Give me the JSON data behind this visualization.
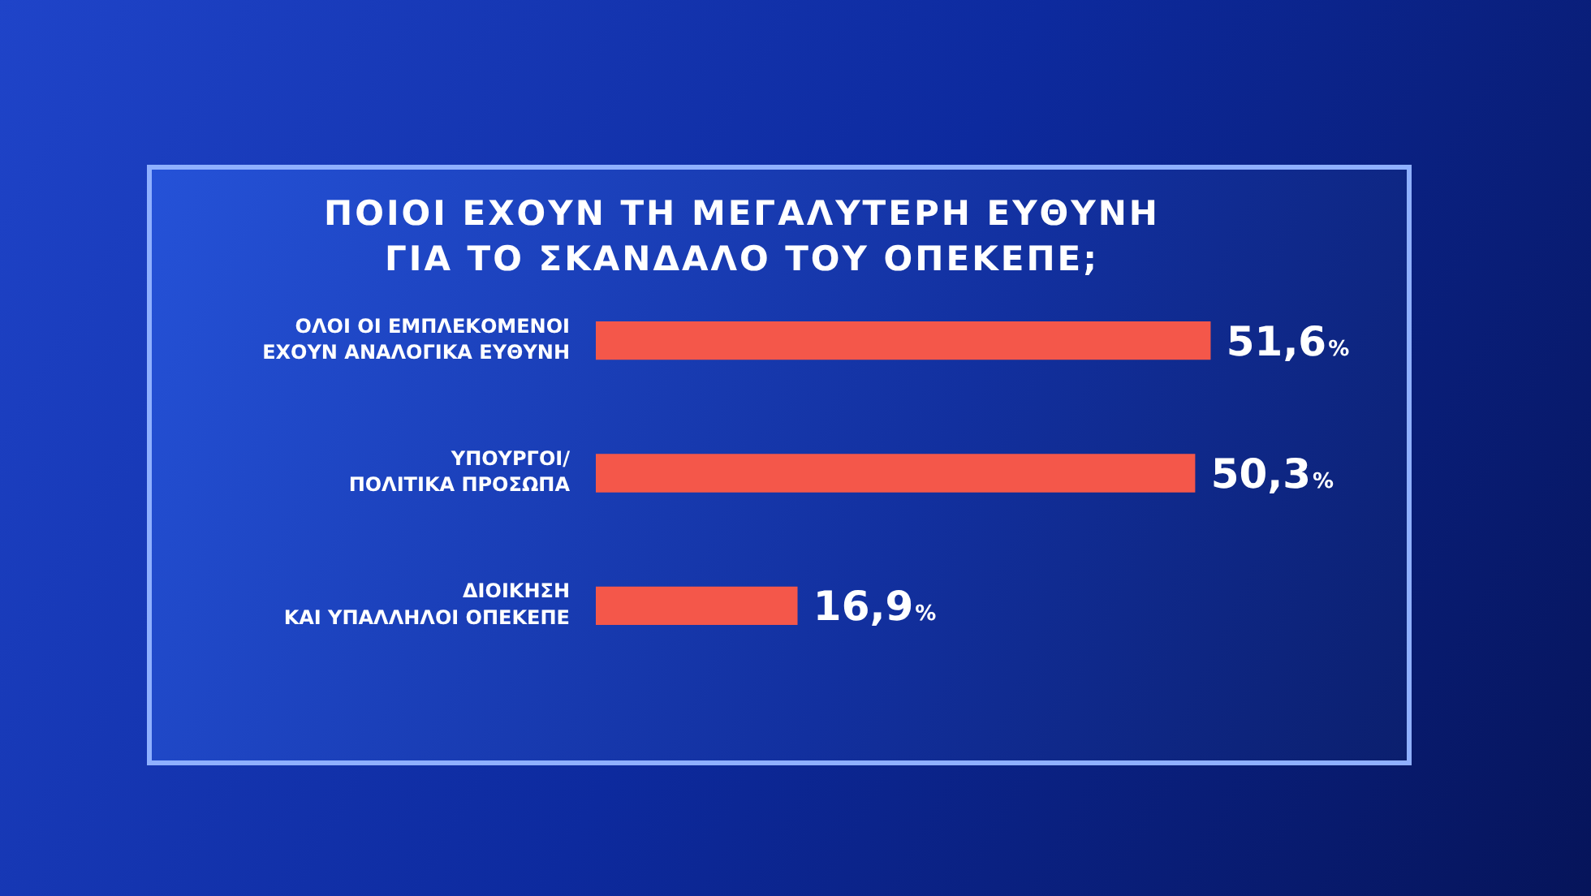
{
  "chart_data": {
    "type": "bar",
    "orientation": "horizontal",
    "title": "ΠΟΙΟΙ ΕΧΟΥΝ ΤΗ ΜΕΓΑΛΥΤΕΡΗ ΕΥΘΥΝΗ\nΓΙΑ ΤΟ ΣΚΑΝΔΑΛΟ ΤΟΥ ΟΠΕΚΕΠΕ;",
    "categories": [
      "ΟΛΟΙ ΟΙ ΕΜΠΛΕΚΟΜΕΝΟΙ\nΕΧΟΥΝ ΑΝΑΛΟΓΙΚΑ ΕΥΘΥΝΗ",
      "ΥΠΟΥΡΓΟΙ/\nΠΟΛΙΤΙΚΑ ΠΡΟΣΩΠΑ",
      "ΔΙΟΙΚΗΣΗ\nΚΑΙ ΥΠΑΛΛΗΛΟΙ ΟΠΕΚΕΠΕ"
    ],
    "values": [
      51.6,
      50.3,
      16.9
    ],
    "value_labels": [
      "51,6%",
      "50,3%",
      "16,9%"
    ],
    "color": "#f4574a",
    "tick_labels": "y"
  }
}
